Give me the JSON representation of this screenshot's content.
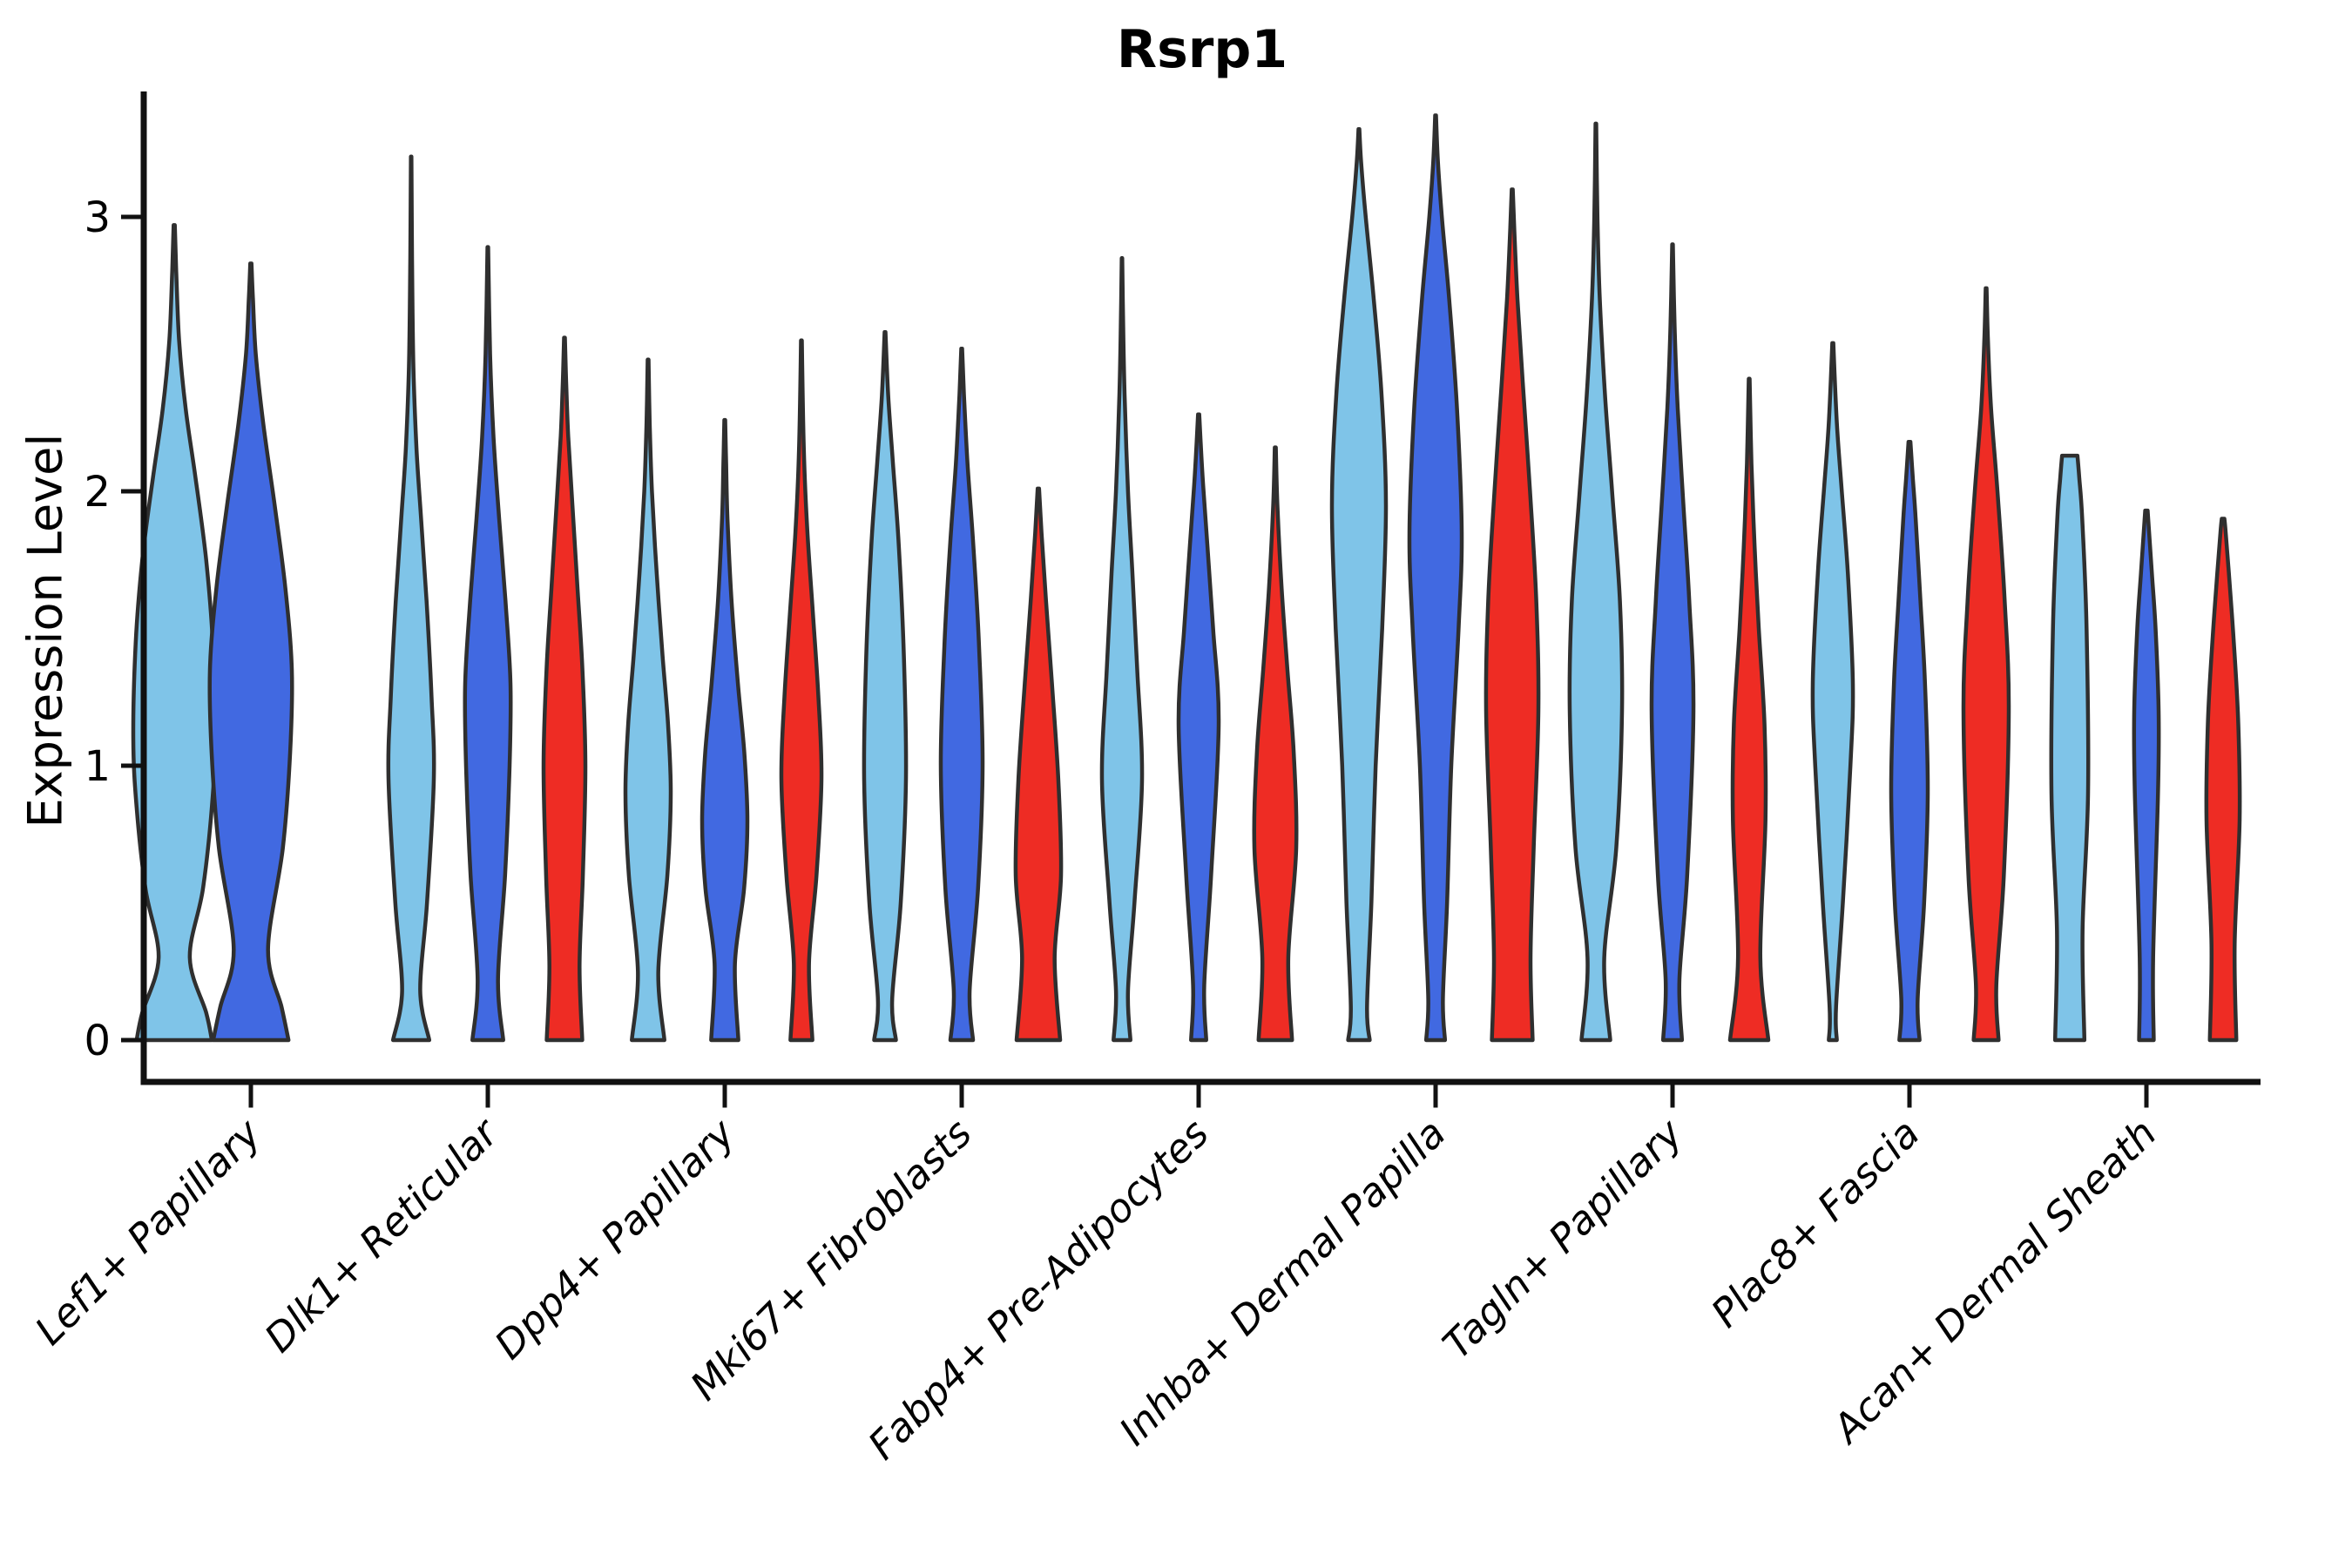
{
  "chart_data": {
    "type": "violin",
    "title": "Rsrp1",
    "xlabel": "",
    "ylabel": "Expression Level",
    "ylim": [
      0,
      3.6
    ],
    "yticks": [
      0,
      1,
      2,
      3
    ],
    "grid": false,
    "legend": "none",
    "categories": [
      "Lef1+ Papillary",
      "Dlk1+ Reticular",
      "Dpp4+ Papillary",
      "Mki67+ Fibroblasts",
      "Fabp4+ Pre-Adipocytes",
      "Inhba+ Dermal Papilla",
      "Tagln+ Papillary",
      "Plac8+ Fascia",
      "Acan+ Dermal Sheath"
    ],
    "series": [
      {
        "name": "series-1",
        "color": "#7FC4E8"
      },
      {
        "name": "series-2",
        "color": "#4169E1"
      },
      {
        "name": "series-3",
        "color": "#EE2C24"
      }
    ],
    "colors": {
      "outline": "#2F2F2F",
      "axis": "#111111",
      "text": "#000000"
    },
    "violins": [
      {
        "category": 0,
        "series": 0,
        "max": 2.97,
        "halfwidth": 47,
        "profile": [
          [
            0,
            0.92
          ],
          [
            0.1,
            0.78
          ],
          [
            0.3,
            0.38
          ],
          [
            0.55,
            0.7
          ],
          [
            0.85,
            0.92
          ],
          [
            1.1,
            1.0
          ],
          [
            1.45,
            0.94
          ],
          [
            1.75,
            0.78
          ],
          [
            2.05,
            0.52
          ],
          [
            2.3,
            0.28
          ],
          [
            2.55,
            0.12
          ],
          [
            2.8,
            0.05
          ],
          [
            2.97,
            0.015
          ]
        ]
      },
      {
        "category": 0,
        "series": 1,
        "max": 2.83,
        "halfwidth": 47,
        "profile": [
          [
            0,
            0.92
          ],
          [
            0.12,
            0.75
          ],
          [
            0.33,
            0.42
          ],
          [
            0.7,
            0.78
          ],
          [
            1.05,
            0.96
          ],
          [
            1.35,
            1.0
          ],
          [
            1.65,
            0.84
          ],
          [
            1.95,
            0.58
          ],
          [
            2.25,
            0.3
          ],
          [
            2.5,
            0.12
          ],
          [
            2.7,
            0.05
          ],
          [
            2.83,
            0.015
          ]
        ]
      },
      {
        "category": 1,
        "series": 0,
        "max": 3.22,
        "halfwidth": 26,
        "profile": [
          [
            0,
            0.8
          ],
          [
            0.18,
            0.4
          ],
          [
            0.5,
            0.7
          ],
          [
            0.95,
            1.0
          ],
          [
            1.25,
            0.9
          ],
          [
            1.6,
            0.68
          ],
          [
            1.9,
            0.44
          ],
          [
            2.15,
            0.24
          ],
          [
            2.45,
            0.1
          ],
          [
            2.85,
            0.04
          ],
          [
            3.22,
            0.012
          ]
        ]
      },
      {
        "category": 1,
        "series": 1,
        "max": 2.89,
        "halfwidth": 26,
        "profile": [
          [
            0,
            0.68
          ],
          [
            0.22,
            0.45
          ],
          [
            0.6,
            0.76
          ],
          [
            1.0,
            0.96
          ],
          [
            1.3,
            1.0
          ],
          [
            1.6,
            0.78
          ],
          [
            1.9,
            0.5
          ],
          [
            2.2,
            0.25
          ],
          [
            2.5,
            0.1
          ],
          [
            2.89,
            0.015
          ]
        ]
      },
      {
        "category": 1,
        "series": 2,
        "max": 2.56,
        "halfwidth": 24,
        "profile": [
          [
            0,
            0.85
          ],
          [
            0.27,
            0.72
          ],
          [
            0.6,
            0.88
          ],
          [
            1.0,
            1.0
          ],
          [
            1.35,
            0.86
          ],
          [
            1.65,
            0.62
          ],
          [
            1.95,
            0.38
          ],
          [
            2.2,
            0.18
          ],
          [
            2.4,
            0.08
          ],
          [
            2.56,
            0.02
          ]
        ]
      },
      {
        "category": 2,
        "series": 0,
        "max": 2.48,
        "halfwidth": 26,
        "profile": [
          [
            0,
            0.72
          ],
          [
            0.25,
            0.45
          ],
          [
            0.6,
            0.85
          ],
          [
            0.9,
            1.0
          ],
          [
            1.15,
            0.88
          ],
          [
            1.4,
            0.64
          ],
          [
            1.7,
            0.38
          ],
          [
            2.0,
            0.17
          ],
          [
            2.25,
            0.07
          ],
          [
            2.48,
            0.02
          ]
        ]
      },
      {
        "category": 2,
        "series": 1,
        "max": 2.26,
        "halfwidth": 26,
        "profile": [
          [
            0,
            0.6
          ],
          [
            0.28,
            0.45
          ],
          [
            0.55,
            0.85
          ],
          [
            0.8,
            1.0
          ],
          [
            1.05,
            0.86
          ],
          [
            1.3,
            0.58
          ],
          [
            1.6,
            0.3
          ],
          [
            1.9,
            0.12
          ],
          [
            2.1,
            0.06
          ],
          [
            2.26,
            0.02
          ]
        ]
      },
      {
        "category": 2,
        "series": 2,
        "max": 2.55,
        "halfwidth": 23,
        "profile": [
          [
            0,
            0.55
          ],
          [
            0.28,
            0.38
          ],
          [
            0.6,
            0.75
          ],
          [
            0.95,
            1.0
          ],
          [
            1.25,
            0.85
          ],
          [
            1.55,
            0.58
          ],
          [
            1.85,
            0.3
          ],
          [
            2.15,
            0.12
          ],
          [
            2.55,
            0.02
          ]
        ]
      },
      {
        "category": 3,
        "series": 0,
        "max": 2.58,
        "halfwidth": 24,
        "profile": [
          [
            0,
            0.52
          ],
          [
            0.15,
            0.34
          ],
          [
            0.5,
            0.75
          ],
          [
            0.95,
            1.0
          ],
          [
            1.4,
            0.9
          ],
          [
            1.8,
            0.66
          ],
          [
            2.1,
            0.38
          ],
          [
            2.35,
            0.15
          ],
          [
            2.58,
            0.02
          ]
        ]
      },
      {
        "category": 3,
        "series": 1,
        "max": 2.52,
        "halfwidth": 24,
        "profile": [
          [
            0,
            0.54
          ],
          [
            0.18,
            0.38
          ],
          [
            0.55,
            0.78
          ],
          [
            1.0,
            1.0
          ],
          [
            1.45,
            0.82
          ],
          [
            1.8,
            0.56
          ],
          [
            2.1,
            0.28
          ],
          [
            2.35,
            0.11
          ],
          [
            2.52,
            0.02
          ]
        ]
      },
      {
        "category": 3,
        "series": 2,
        "max": 2.01,
        "halfwidth": 26,
        "profile": [
          [
            0,
            0.96
          ],
          [
            0.3,
            0.72
          ],
          [
            0.6,
            1.0
          ],
          [
            0.95,
            0.88
          ],
          [
            1.3,
            0.6
          ],
          [
            1.6,
            0.34
          ],
          [
            1.85,
            0.14
          ],
          [
            2.01,
            0.03
          ]
        ]
      },
      {
        "category": 4,
        "series": 0,
        "max": 2.85,
        "halfwidth": 23,
        "profile": [
          [
            0,
            0.42
          ],
          [
            0.18,
            0.3
          ],
          [
            0.5,
            0.62
          ],
          [
            0.95,
            1.0
          ],
          [
            1.35,
            0.76
          ],
          [
            1.7,
            0.52
          ],
          [
            2.0,
            0.3
          ],
          [
            2.35,
            0.13
          ],
          [
            2.6,
            0.06
          ],
          [
            2.85,
            0.015
          ]
        ]
      },
      {
        "category": 4,
        "series": 1,
        "max": 2.28,
        "halfwidth": 23,
        "profile": [
          [
            0,
            0.38
          ],
          [
            0.2,
            0.28
          ],
          [
            0.6,
            0.62
          ],
          [
            1.15,
            1.0
          ],
          [
            1.5,
            0.72
          ],
          [
            1.8,
            0.44
          ],
          [
            2.05,
            0.2
          ],
          [
            2.28,
            0.03
          ]
        ]
      },
      {
        "category": 4,
        "series": 2,
        "max": 2.16,
        "halfwidth": 24,
        "profile": [
          [
            0,
            0.8
          ],
          [
            0.3,
            0.62
          ],
          [
            0.7,
            1.0
          ],
          [
            1.05,
            0.88
          ],
          [
            1.35,
            0.58
          ],
          [
            1.65,
            0.3
          ],
          [
            1.95,
            0.1
          ],
          [
            2.16,
            0.025
          ]
        ]
      },
      {
        "category": 5,
        "series": 0,
        "max": 3.32,
        "halfwidth": 31,
        "profile": [
          [
            0,
            0.4
          ],
          [
            0.12,
            0.3
          ],
          [
            0.5,
            0.46
          ],
          [
            1.0,
            0.62
          ],
          [
            1.5,
            0.86
          ],
          [
            1.95,
            1.0
          ],
          [
            2.35,
            0.84
          ],
          [
            2.7,
            0.55
          ],
          [
            3.0,
            0.25
          ],
          [
            3.2,
            0.08
          ],
          [
            3.32,
            0.015
          ]
        ]
      },
      {
        "category": 5,
        "series": 1,
        "max": 3.37,
        "halfwidth": 30,
        "profile": [
          [
            0,
            0.36
          ],
          [
            0.15,
            0.28
          ],
          [
            0.5,
            0.44
          ],
          [
            1.0,
            0.6
          ],
          [
            1.5,
            0.88
          ],
          [
            1.85,
            1.0
          ],
          [
            2.3,
            0.82
          ],
          [
            2.7,
            0.52
          ],
          [
            3.0,
            0.24
          ],
          [
            3.2,
            0.09
          ],
          [
            3.37,
            0.015
          ]
        ]
      },
      {
        "category": 5,
        "series": 2,
        "max": 3.1,
        "halfwidth": 30,
        "profile": [
          [
            0,
            0.78
          ],
          [
            0.3,
            0.7
          ],
          [
            0.7,
            0.82
          ],
          [
            1.2,
            1.0
          ],
          [
            1.6,
            0.92
          ],
          [
            2.0,
            0.68
          ],
          [
            2.4,
            0.4
          ],
          [
            2.7,
            0.2
          ],
          [
            2.95,
            0.08
          ],
          [
            3.1,
            0.02
          ]
        ]
      },
      {
        "category": 6,
        "series": 0,
        "max": 3.34,
        "halfwidth": 30,
        "profile": [
          [
            0,
            0.55
          ],
          [
            0.3,
            0.32
          ],
          [
            0.7,
            0.78
          ],
          [
            1.2,
            1.0
          ],
          [
            1.6,
            0.92
          ],
          [
            2.0,
            0.62
          ],
          [
            2.35,
            0.35
          ],
          [
            2.7,
            0.15
          ],
          [
            3.0,
            0.06
          ],
          [
            3.34,
            0.012
          ]
        ]
      },
      {
        "category": 6,
        "series": 1,
        "max": 2.9,
        "halfwidth": 24,
        "profile": [
          [
            0,
            0.45
          ],
          [
            0.22,
            0.33
          ],
          [
            0.6,
            0.7
          ],
          [
            1.2,
            1.0
          ],
          [
            1.6,
            0.8
          ],
          [
            1.95,
            0.52
          ],
          [
            2.3,
            0.25
          ],
          [
            2.6,
            0.1
          ],
          [
            2.9,
            0.015
          ]
        ]
      },
      {
        "category": 6,
        "series": 2,
        "max": 2.41,
        "halfwidth": 22,
        "profile": [
          [
            0,
            1.0
          ],
          [
            0.3,
            0.58
          ],
          [
            0.8,
            0.85
          ],
          [
            1.15,
            0.8
          ],
          [
            1.5,
            0.5
          ],
          [
            1.8,
            0.28
          ],
          [
            2.1,
            0.12
          ],
          [
            2.41,
            0.025
          ]
        ]
      },
      {
        "category": 7,
        "series": 0,
        "max": 2.54,
        "halfwidth": 23,
        "profile": [
          [
            0,
            0.2
          ],
          [
            0.12,
            0.16
          ],
          [
            0.5,
            0.5
          ],
          [
            1.0,
            0.88
          ],
          [
            1.3,
            1.0
          ],
          [
            1.7,
            0.75
          ],
          [
            2.0,
            0.45
          ],
          [
            2.25,
            0.2
          ],
          [
            2.54,
            0.025
          ]
        ]
      },
      {
        "category": 7,
        "series": 1,
        "max": 2.18,
        "halfwidth": 21,
        "profile": [
          [
            0,
            0.55
          ],
          [
            0.15,
            0.45
          ],
          [
            0.5,
            0.8
          ],
          [
            0.9,
            1.0
          ],
          [
            1.3,
            0.85
          ],
          [
            1.6,
            0.6
          ],
          [
            1.9,
            0.34
          ],
          [
            2.05,
            0.18
          ],
          [
            2.18,
            0.05
          ]
        ]
      },
      {
        "category": 7,
        "series": 2,
        "max": 2.74,
        "halfwidth": 26,
        "profile": [
          [
            0,
            0.55
          ],
          [
            0.2,
            0.45
          ],
          [
            0.6,
            0.78
          ],
          [
            1.2,
            1.0
          ],
          [
            1.6,
            0.82
          ],
          [
            2.0,
            0.5
          ],
          [
            2.3,
            0.22
          ],
          [
            2.55,
            0.08
          ],
          [
            2.74,
            0.02
          ]
        ]
      },
      {
        "category": 8,
        "series": 0,
        "max": 2.13,
        "halfwidth": 21,
        "profile": [
          [
            0,
            0.8
          ],
          [
            0.4,
            0.7
          ],
          [
            0.9,
            1.0
          ],
          [
            1.5,
            0.92
          ],
          [
            1.9,
            0.68
          ],
          [
            2.05,
            0.52
          ],
          [
            2.13,
            0.42
          ]
        ]
      },
      {
        "category": 8,
        "series": 1,
        "max": 1.93,
        "halfwidth": 14,
        "profile": [
          [
            0,
            0.6
          ],
          [
            0.3,
            0.55
          ],
          [
            0.9,
            0.95
          ],
          [
            1.2,
            1.0
          ],
          [
            1.5,
            0.75
          ],
          [
            1.7,
            0.45
          ],
          [
            1.85,
            0.22
          ],
          [
            1.93,
            0.1
          ]
        ]
      },
      {
        "category": 8,
        "series": 2,
        "max": 1.9,
        "halfwidth": 19,
        "profile": [
          [
            0,
            0.8
          ],
          [
            0.35,
            0.7
          ],
          [
            0.8,
            1.0
          ],
          [
            1.15,
            0.92
          ],
          [
            1.45,
            0.65
          ],
          [
            1.7,
            0.35
          ],
          [
            1.85,
            0.16
          ],
          [
            1.9,
            0.08
          ]
        ]
      }
    ]
  }
}
